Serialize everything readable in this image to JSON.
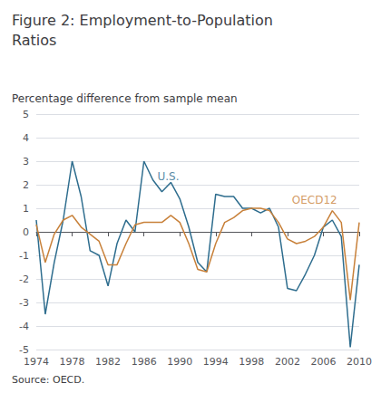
{
  "chart_data": {
    "type": "line",
    "title": "Figure 2: Employment-to-Population\nRatios",
    "subtitle": "Percentage difference from sample mean",
    "source": "Source: OECD.",
    "x": [
      1974,
      1975,
      1976,
      1977,
      1978,
      1979,
      1980,
      1981,
      1982,
      1983,
      1984,
      1985,
      1986,
      1987,
      1988,
      1989,
      1990,
      1991,
      1992,
      1993,
      1994,
      1995,
      1996,
      1997,
      1998,
      1999,
      2000,
      2001,
      2002,
      2003,
      2004,
      2005,
      2006,
      2007,
      2008,
      2009,
      2010
    ],
    "series": [
      {
        "name": "U.S.",
        "color": "#2e6d8e",
        "values": [
          0.5,
          -3.5,
          -1.3,
          0.5,
          3.0,
          1.5,
          -0.8,
          -1.0,
          -2.3,
          -0.5,
          0.5,
          0.0,
          3.0,
          2.2,
          1.7,
          2.1,
          1.4,
          0.2,
          -1.3,
          -1.7,
          1.6,
          1.5,
          1.5,
          1.0,
          1.0,
          0.8,
          1.0,
          0.2,
          -2.4,
          -2.5,
          -1.8,
          -1.0,
          0.2,
          0.5,
          -0.2,
          -4.9,
          -1.4
        ]
      },
      {
        "name": "OECD12",
        "color": "#c8813a",
        "values": [
          0.3,
          -1.3,
          -0.1,
          0.5,
          0.7,
          0.2,
          -0.1,
          -0.4,
          -1.4,
          -1.4,
          -0.5,
          0.3,
          0.4,
          0.4,
          0.4,
          0.7,
          0.4,
          -0.5,
          -1.6,
          -1.7,
          -0.5,
          0.4,
          0.6,
          0.9,
          1.0,
          1.0,
          0.9,
          0.4,
          -0.3,
          -0.5,
          -0.4,
          -0.2,
          0.2,
          0.9,
          0.4,
          -2.9,
          0.4
        ]
      }
    ],
    "annotations": [
      {
        "text": "U.S.",
        "x": 1987.5,
        "y": 2.35,
        "color": "#2e6d8e"
      },
      {
        "text": "OECD12",
        "x": 2002.5,
        "y": 1.35,
        "color": "#c8813a"
      }
    ],
    "xlim": [
      1974,
      2010
    ],
    "xticks": [
      1974,
      1978,
      1982,
      1986,
      1990,
      1994,
      1998,
      2002,
      2006,
      2010
    ],
    "ylim": [
      -5,
      5
    ],
    "yticks": [
      -5,
      -4,
      -3,
      -2,
      -1,
      0,
      1,
      2,
      3,
      4,
      5
    ],
    "grid": true
  }
}
